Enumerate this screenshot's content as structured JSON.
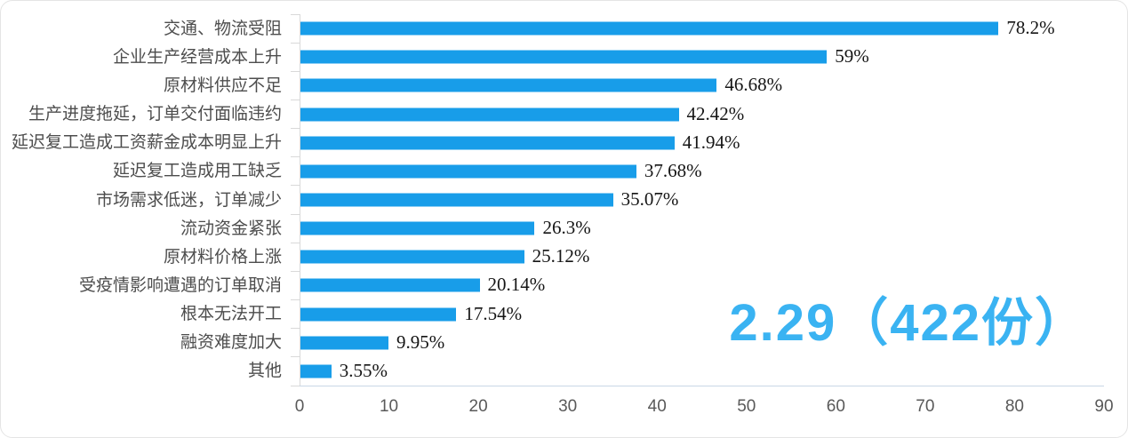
{
  "chart_data": {
    "type": "bar",
    "orientation": "horizontal",
    "categories": [
      "交通、物流受阻",
      "企业生产经营成本上升",
      "原材料供应不足",
      "生产进度拖延，订单交付面临违约",
      "延迟复工造成工资薪金成本明显上升",
      "延迟复工造成用工缺乏",
      "市场需求低迷，订单减少",
      "流动资金紧张",
      "原材料价格上涨",
      "受疫情影响遭遇的订单取消",
      "根本无法开工",
      "融资难度加大",
      "其他"
    ],
    "values": [
      78.2,
      59,
      46.68,
      42.42,
      41.94,
      37.68,
      35.07,
      26.3,
      25.12,
      20.14,
      17.54,
      9.95,
      3.55
    ],
    "value_labels": [
      "78.2%",
      "59%",
      "46.68%",
      "42.42%",
      "41.94%",
      "37.68%",
      "35.07%",
      "26.3%",
      "25.12%",
      "20.14%",
      "17.54%",
      "9.95%",
      "3.55%"
    ],
    "xlabel": "",
    "ylabel": "",
    "xlim": [
      0,
      90
    ],
    "xticks": [
      0,
      10,
      20,
      30,
      40,
      50,
      60,
      70,
      80,
      90
    ],
    "grid": false,
    "legend": false,
    "annotation": "2.29（422份）",
    "bar_color": "#189de9",
    "annotation_color": "#3ab3f2"
  }
}
